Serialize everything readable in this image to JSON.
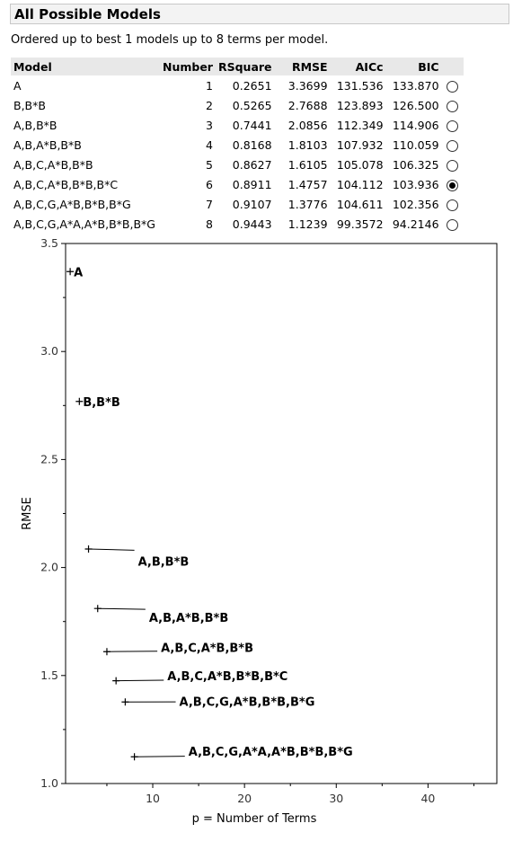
{
  "panel": {
    "title": "All Possible Models"
  },
  "subtitle": "Ordered up to best 1 models up to 8 terms per model.",
  "table": {
    "headers": {
      "model": "Model",
      "number": "Number",
      "rsquare": "RSquare",
      "rmse": "RMSE",
      "aicc": "AICc",
      "bic": "BIC"
    },
    "rows": [
      {
        "model": "A",
        "number": "1",
        "rsquare": "0.2651",
        "rmse": "3.3699",
        "aicc": "131.536",
        "bic": "133.870",
        "selected": false
      },
      {
        "model": "B,B*B",
        "number": "2",
        "rsquare": "0.5265",
        "rmse": "2.7688",
        "aicc": "123.893",
        "bic": "126.500",
        "selected": false
      },
      {
        "model": "A,B,B*B",
        "number": "3",
        "rsquare": "0.7441",
        "rmse": "2.0856",
        "aicc": "112.349",
        "bic": "114.906",
        "selected": false
      },
      {
        "model": "A,B,A*B,B*B",
        "number": "4",
        "rsquare": "0.8168",
        "rmse": "1.8103",
        "aicc": "107.932",
        "bic": "110.059",
        "selected": false
      },
      {
        "model": "A,B,C,A*B,B*B",
        "number": "5",
        "rsquare": "0.8627",
        "rmse": "1.6105",
        "aicc": "105.078",
        "bic": "106.325",
        "selected": false
      },
      {
        "model": "A,B,C,A*B,B*B,B*C",
        "number": "6",
        "rsquare": "0.8911",
        "rmse": "1.4757",
        "aicc": "104.112",
        "bic": "103.936",
        "selected": true
      },
      {
        "model": "A,B,C,G,A*B,B*B,B*G",
        "number": "7",
        "rsquare": "0.9107",
        "rmse": "1.3776",
        "aicc": "104.611",
        "bic": "102.356",
        "selected": false
      },
      {
        "model": "A,B,C,G,A*A,A*B,B*B,B*G",
        "number": "8",
        "rsquare": "0.9443",
        "rmse": "1.1239",
        "aicc": "99.3572",
        "bic": "94.2146",
        "selected": false
      }
    ]
  },
  "chart_data": {
    "type": "scatter",
    "xlabel": "p = Number of Terms",
    "ylabel": "RMSE",
    "xlim": [
      0.5,
      47.5
    ],
    "ylim": [
      1.0,
      3.5
    ],
    "xticks": [
      10,
      20,
      30,
      40
    ],
    "yticks": [
      1.0,
      1.5,
      2.0,
      2.5,
      3.0,
      3.5
    ],
    "yticklabels": [
      "1.0",
      "1.5",
      "2.0",
      "2.5",
      "3.0",
      "3.5"
    ],
    "points": [
      {
        "x": 1,
        "y": 3.3699,
        "label": "A",
        "label_x": 1,
        "label_y": 3.3699
      },
      {
        "x": 2,
        "y": 2.7688,
        "label": "B,B*B",
        "label_x": 2,
        "label_y": 2.7688
      },
      {
        "x": 3,
        "y": 2.0856,
        "label": "A,B,B*B",
        "label_x": 8,
        "label_y": 2.03
      },
      {
        "x": 4,
        "y": 1.8103,
        "label": "A,B,A*B,B*B",
        "label_x": 9.2,
        "label_y": 1.77
      },
      {
        "x": 5,
        "y": 1.6105,
        "label": "A,B,C,A*B,B*B",
        "label_x": 10.5,
        "label_y": 1.63
      },
      {
        "x": 6,
        "y": 1.4757,
        "label": "A,B,C,A*B,B*B,B*C",
        "label_x": 11.2,
        "label_y": 1.5
      },
      {
        "x": 7,
        "y": 1.3776,
        "label": "A,B,C,G,A*B,B*B,B*G",
        "label_x": 12.5,
        "label_y": 1.38
      },
      {
        "x": 8,
        "y": 1.1239,
        "label": "A,B,C,G,A*A,A*B,B*B,B*G",
        "label_x": 13.5,
        "label_y": 1.15
      }
    ],
    "grid": false,
    "legend": "none"
  }
}
